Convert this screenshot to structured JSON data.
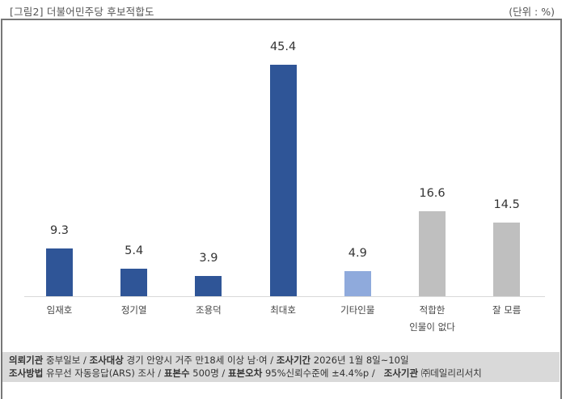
{
  "header": {
    "title": "[그림2] 더불어민주당 후보적합도",
    "unit": "(단위 : %)"
  },
  "chart_data": {
    "type": "bar",
    "title": "[그림2] 더불어민주당 후보적합도",
    "unit": "%",
    "xlabel": "",
    "ylabel": "",
    "ylim": [
      0,
      50
    ],
    "grid": false,
    "legend": null,
    "categories": [
      "임재호",
      "정기열",
      "조용덕",
      "최대호",
      "기타인물",
      "적합한 인물이 없다",
      "잘 모름"
    ],
    "values": [
      9.3,
      5.4,
      3.9,
      45.4,
      4.9,
      16.6,
      14.5
    ],
    "labels": [
      "9.3",
      "5.4",
      "3.9",
      "45.4",
      "4.9",
      "16.6",
      "14.5"
    ],
    "colors": [
      "#2f5597",
      "#2f5597",
      "#2f5597",
      "#2f5597",
      "#8faadc",
      "#bfbfbf",
      "#bfbfbf"
    ]
  },
  "category_lines": [
    [
      "임재호"
    ],
    [
      "정기열"
    ],
    [
      "조용덕"
    ],
    [
      "최대호"
    ],
    [
      "기타인물"
    ],
    [
      "적합한",
      "인물이 없다"
    ],
    [
      "잘 모름"
    ]
  ],
  "footer": {
    "line1": [
      {
        "label": "의뢰기관",
        "value": "중부일보 /"
      },
      {
        "label": "조사대상",
        "value": "경기 안양시 거주 만18세 이상 남·여 /"
      },
      {
        "label": "조사기간",
        "value": "2026년 1월 8일~10일"
      }
    ],
    "line2": [
      {
        "label": "조사방법",
        "value": "유무선 자동응답(ARS) 조사 /"
      },
      {
        "label": "표본수",
        "value": "500명 /"
      },
      {
        "label": "표본오차",
        "value": "95%신뢰수준에 ±4.4%p /"
      },
      {
        "label": "조사기관",
        "value": "㈜데일리리서치"
      }
    ]
  }
}
